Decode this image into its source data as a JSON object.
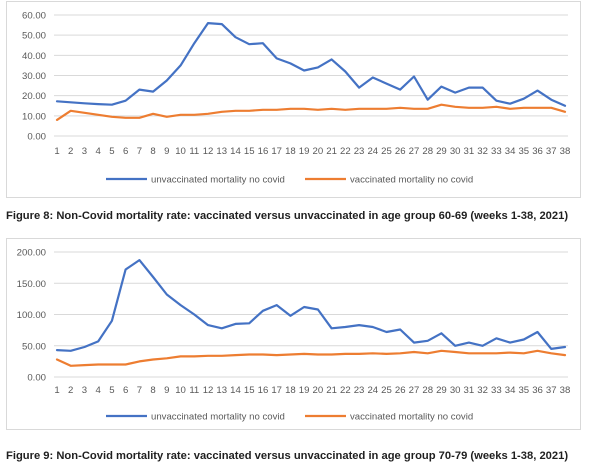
{
  "figures": [
    {
      "caption": "Figure 8: Non-Covid mortality rate: vaccinated versus unvaccinated in age group 60-69 (weeks 1-38, 2021)"
    },
    {
      "caption": "Figure 9: Non-Covid mortality rate: vaccinated versus unvaccinated in age group 70-79 (weeks 1-38, 2021)"
    }
  ],
  "chart_data": [
    {
      "type": "line",
      "title": "",
      "xlabel": "",
      "ylabel": "",
      "x": [
        1,
        2,
        3,
        4,
        5,
        6,
        7,
        8,
        9,
        10,
        11,
        12,
        13,
        14,
        15,
        16,
        17,
        18,
        19,
        20,
        21,
        22,
        23,
        24,
        25,
        26,
        27,
        28,
        29,
        30,
        31,
        32,
        33,
        34,
        35,
        36,
        37,
        38
      ],
      "ylim": [
        0,
        60
      ],
      "yticks": [
        "0.00",
        "10.00",
        "20.00",
        "30.00",
        "40.00",
        "50.00",
        "60.00"
      ],
      "grid": true,
      "legend_position": "bottom",
      "series": [
        {
          "name": "unvaccinated mortality no covid",
          "color": "#4472c4",
          "values": [
            17.2,
            16.7,
            16.2,
            15.8,
            15.5,
            17.5,
            23.0,
            22.0,
            27.5,
            35.0,
            46.0,
            56.0,
            55.5,
            49.0,
            45.5,
            46.0,
            38.5,
            36.0,
            32.5,
            34.0,
            38.0,
            32.0,
            24.0,
            29.0,
            26.0,
            23.0,
            29.5,
            18.0,
            24.5,
            21.5,
            24.0,
            24.0,
            17.5,
            16.0,
            18.5,
            22.5,
            18.0,
            15.0
          ]
        },
        {
          "name": "vaccinated mortality no covid",
          "color": "#ed7d31",
          "values": [
            8.0,
            12.5,
            11.5,
            10.5,
            9.5,
            9.0,
            9.0,
            11.0,
            9.5,
            10.5,
            10.5,
            11.0,
            12.0,
            12.5,
            12.5,
            13.0,
            13.0,
            13.5,
            13.5,
            13.0,
            13.5,
            13.0,
            13.5,
            13.5,
            13.5,
            14.0,
            13.5,
            13.5,
            15.5,
            14.5,
            14.0,
            14.0,
            14.5,
            13.5,
            14.0,
            14.0,
            14.0,
            12.0
          ]
        }
      ]
    },
    {
      "type": "line",
      "title": "",
      "xlabel": "",
      "ylabel": "",
      "x": [
        1,
        2,
        3,
        4,
        5,
        6,
        7,
        8,
        9,
        10,
        11,
        12,
        13,
        14,
        15,
        16,
        17,
        18,
        19,
        20,
        21,
        22,
        23,
        24,
        25,
        26,
        27,
        28,
        29,
        30,
        31,
        32,
        33,
        34,
        35,
        36,
        37,
        38
      ],
      "ylim": [
        0,
        200
      ],
      "yticks": [
        "0.00",
        "50.00",
        "100.00",
        "150.00",
        "200.00"
      ],
      "grid": true,
      "legend_position": "bottom",
      "series": [
        {
          "name": "unvaccinated mortality no covid",
          "color": "#4472c4",
          "values": [
            43,
            42,
            48,
            57,
            90,
            172,
            187,
            160,
            132,
            115,
            100,
            83,
            78,
            85,
            86,
            106,
            115,
            98,
            112,
            108,
            78,
            80,
            83,
            80,
            72,
            76,
            55,
            58,
            70,
            50,
            55,
            50,
            62,
            55,
            60,
            72,
            45,
            48
          ]
        },
        {
          "name": "vaccinated mortality no covid",
          "color": "#ed7d31",
          "values": [
            28,
            18,
            19,
            20,
            20,
            20,
            25,
            28,
            30,
            33,
            33,
            34,
            34,
            35,
            36,
            36,
            35,
            36,
            37,
            36,
            36,
            37,
            37,
            38,
            37,
            38,
            40,
            38,
            42,
            40,
            38,
            38,
            38,
            39,
            38,
            42,
            38,
            35
          ]
        }
      ]
    }
  ]
}
